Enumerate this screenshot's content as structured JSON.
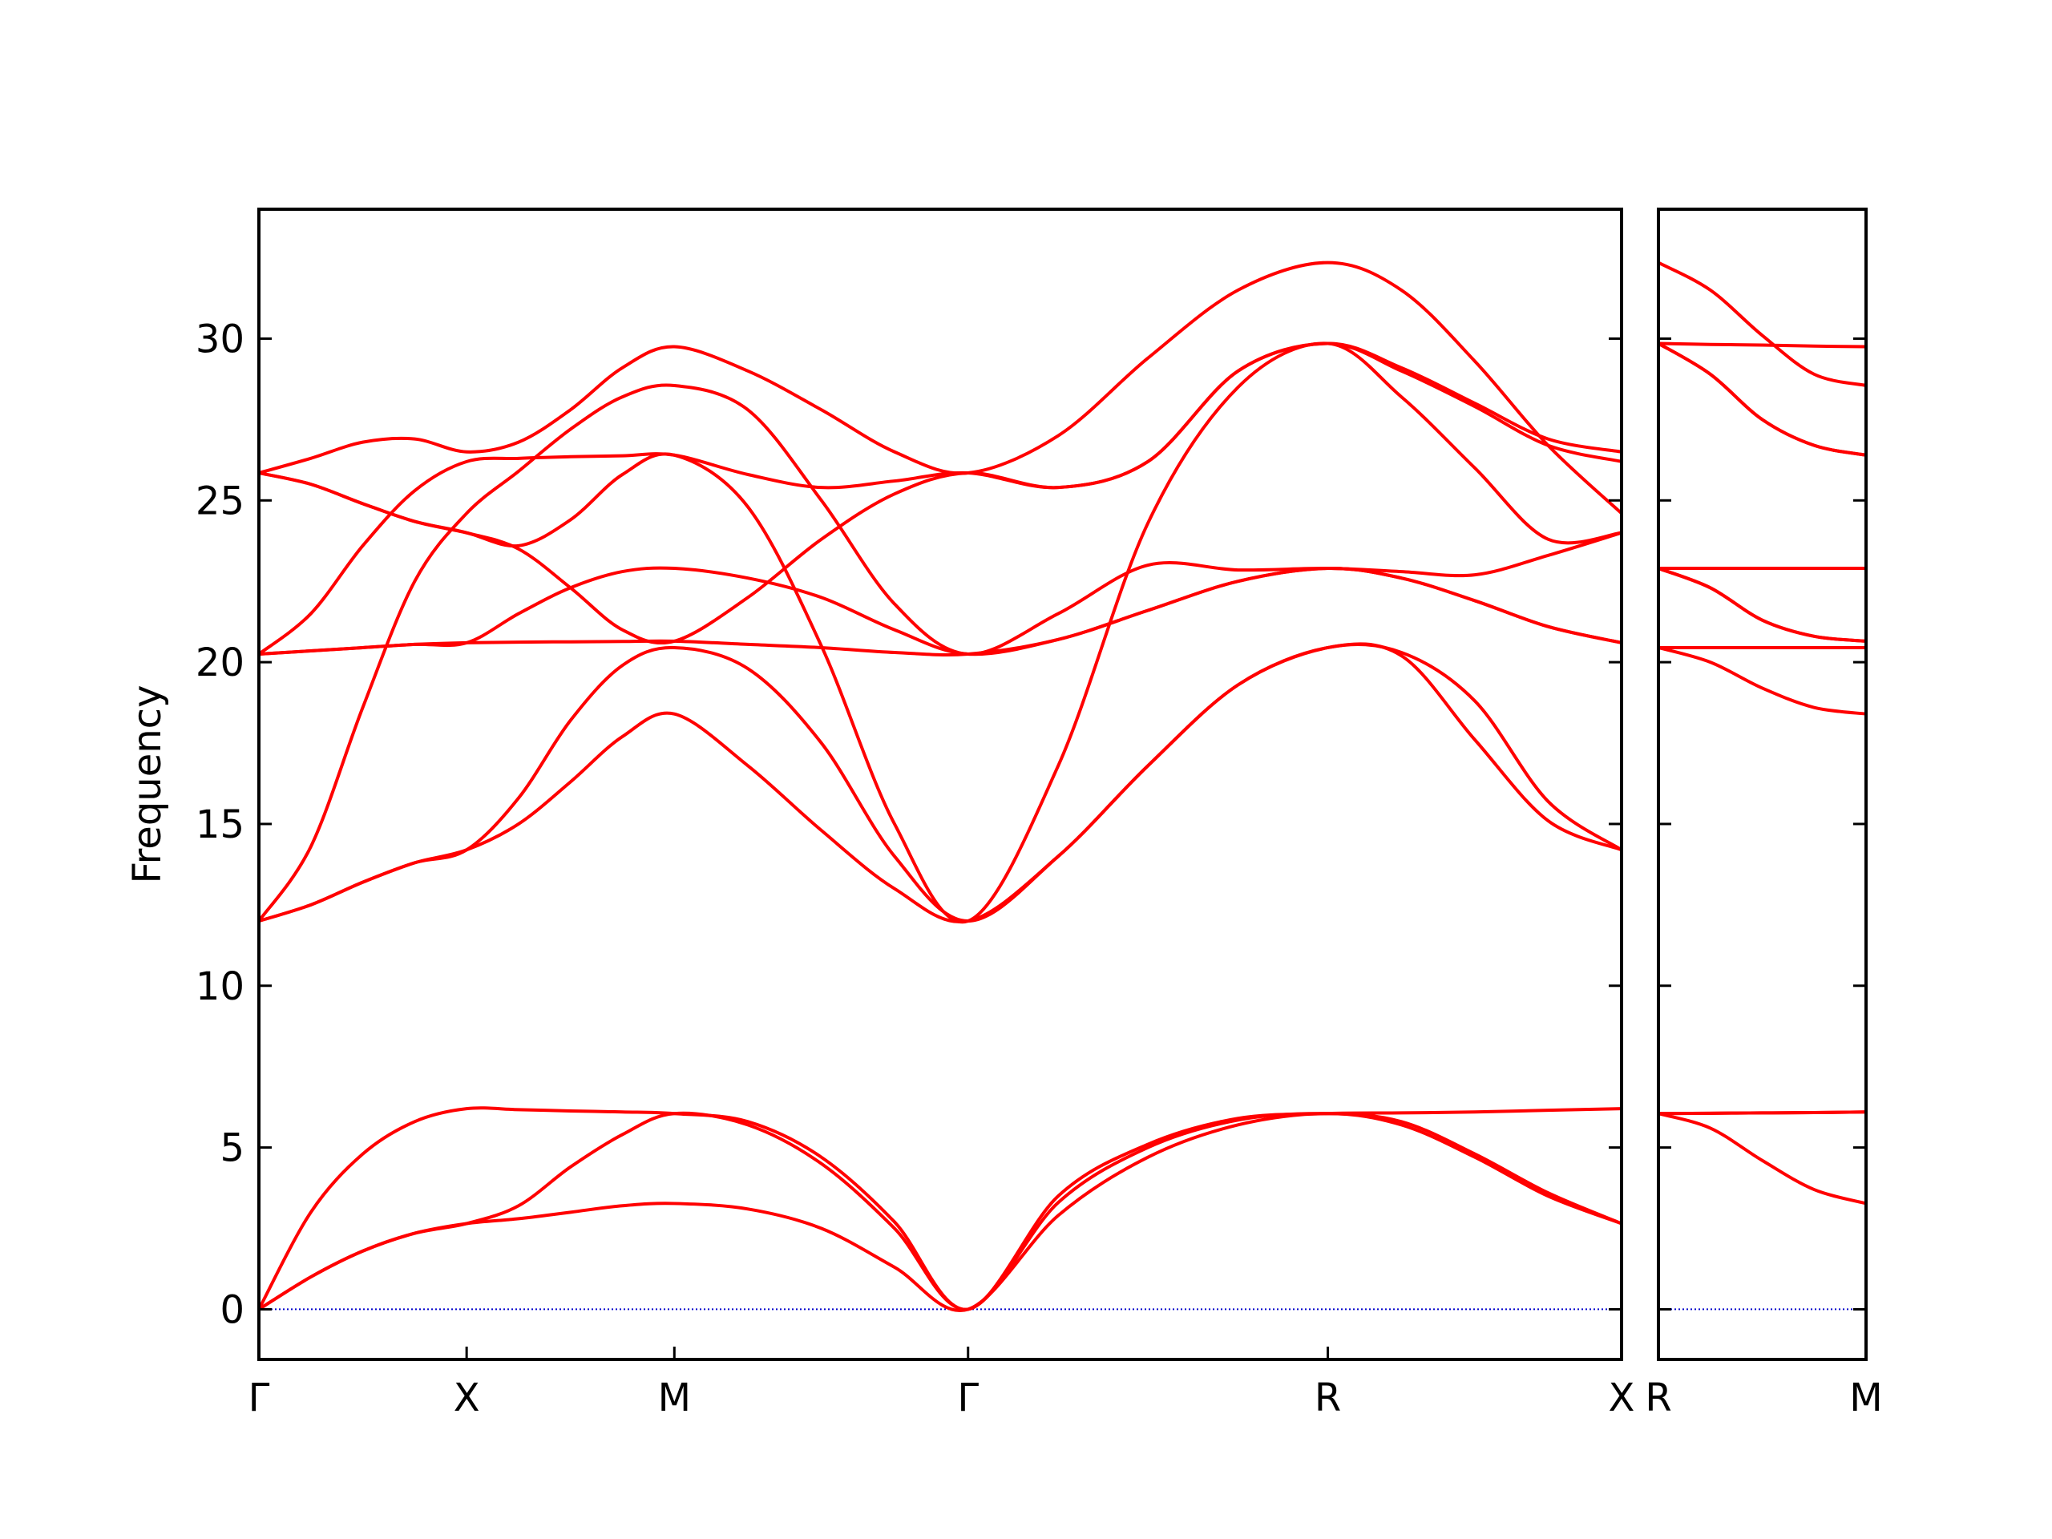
{
  "chart_data": [
    {
      "type": "line",
      "ylabel": "Frequency",
      "color": "#ff0000",
      "x": [
        0,
        0.125,
        0.25,
        0.375,
        0.5,
        0.625,
        0.75,
        0.875,
        1.0,
        1.177,
        1.354,
        1.53,
        1.707,
        1.924,
        2.14,
        2.357,
        2.573,
        2.75,
        2.927,
        3.103,
        3.28
      ],
      "xlim": [
        0,
        3.28
      ],
      "xticks": [
        {
          "value": 0,
          "label": "Γ"
        },
        {
          "value": 0.5,
          "label": "X"
        },
        {
          "value": 1.0,
          "label": "M"
        },
        {
          "value": 1.707,
          "label": "Γ"
        },
        {
          "value": 2.573,
          "label": "R"
        },
        {
          "value": 3.28,
          "label": "X"
        }
      ],
      "ylim": [
        -1.55,
        34.0
      ],
      "yticks": [
        0,
        5,
        10,
        15,
        20,
        25,
        30
      ],
      "show_ytick_labels": true,
      "hline": {
        "y": 0,
        "color": "#0000cc",
        "style": "dotted"
      },
      "series": [
        {
          "values": [
            0,
            1.0,
            1.8,
            2.35,
            2.65,
            2.8,
            3.0,
            3.2,
            3.27,
            3.1,
            2.5,
            1.3,
            0,
            2.9,
            4.7,
            5.7,
            6.05,
            5.7,
            4.7,
            3.5,
            2.65
          ]
        },
        {
          "values": [
            0,
            1.0,
            1.8,
            2.35,
            2.65,
            3.2,
            4.4,
            5.4,
            6.05,
            5.7,
            4.5,
            2.5,
            0,
            3.3,
            5.0,
            5.85,
            6.05,
            5.8,
            4.8,
            3.6,
            2.65
          ]
        },
        {
          "values": [
            0,
            3.0,
            4.8,
            5.8,
            6.2,
            6.17,
            6.13,
            6.1,
            6.05,
            5.8,
            4.7,
            2.7,
            0,
            3.5,
            5.1,
            5.9,
            6.05,
            6.07,
            6.1,
            6.15,
            6.2
          ]
        },
        {
          "values": [
            12,
            12.5,
            13.2,
            13.8,
            14.2,
            15.0,
            16.3,
            17.7,
            18.4,
            16.8,
            14.8,
            13.0,
            12,
            14.0,
            16.8,
            19.3,
            20.45,
            20.2,
            17.6,
            15.1,
            14.2
          ]
        },
        {
          "values": [
            12,
            12.5,
            13.2,
            13.8,
            14.2,
            15.8,
            18.2,
            19.9,
            20.45,
            19.8,
            17.5,
            14.0,
            12,
            14.0,
            16.8,
            19.3,
            20.45,
            20.3,
            18.8,
            15.7,
            14.2
          ]
        },
        {
          "values": [
            12,
            14.3,
            18.6,
            22.5,
            24.6,
            25.9,
            27.2,
            28.2,
            28.55,
            27.8,
            25.0,
            21.8,
            20.25,
            21.5,
            23.0,
            22.85,
            22.9,
            22.8,
            22.7,
            23.3,
            24.0
          ]
        },
        {
          "values": [
            20.25,
            20.35,
            20.45,
            20.55,
            20.6,
            20.62,
            20.63,
            20.64,
            20.65,
            20.55,
            20.45,
            20.3,
            20.25,
            20.7,
            21.6,
            22.5,
            22.9,
            22.6,
            21.9,
            21.1,
            20.6
          ]
        },
        {
          "values": [
            20.25,
            20.35,
            20.45,
            20.55,
            20.6,
            21.5,
            22.3,
            22.8,
            22.9,
            22.6,
            22.0,
            21.0,
            20.25,
            20.7,
            21.6,
            22.5,
            22.9,
            22.6,
            21.9,
            21.1,
            20.6
          ]
        },
        {
          "values": [
            20.25,
            21.5,
            23.6,
            25.3,
            26.2,
            26.3,
            26.35,
            26.38,
            26.4,
            25.8,
            25.4,
            25.6,
            25.85,
            25.4,
            26.2,
            29.0,
            29.85,
            29.0,
            27.9,
            26.7,
            26.2
          ]
        },
        {
          "values": [
            25.85,
            25.5,
            24.9,
            24.35,
            24.0,
            23.5,
            22.3,
            21.0,
            20.65,
            22.0,
            23.8,
            25.2,
            25.85,
            25.4,
            26.2,
            29.0,
            29.85,
            29.1,
            28.0,
            26.9,
            26.5
          ]
        },
        {
          "values": [
            25.85,
            25.5,
            24.9,
            24.35,
            24.0,
            23.6,
            24.4,
            25.8,
            26.4,
            24.8,
            20.5,
            15.0,
            12,
            16.8,
            24.3,
            28.5,
            29.85,
            28.2,
            26.0,
            23.8,
            24.0
          ]
        },
        {
          "values": [
            25.85,
            26.3,
            26.8,
            26.9,
            26.5,
            26.8,
            27.8,
            29.1,
            29.75,
            29.0,
            27.8,
            26.5,
            25.85,
            27.0,
            29.4,
            31.5,
            32.35,
            31.5,
            29.3,
            26.7,
            24.6
          ]
        }
      ]
    },
    {
      "type": "line",
      "color": "#ff0000",
      "x": [
        0,
        0.125,
        0.25,
        0.375,
        0.5
      ],
      "xlim": [
        0,
        0.5
      ],
      "xticks": [
        {
          "value": 0,
          "label": "R"
        },
        {
          "value": 0.5,
          "label": "M"
        }
      ],
      "ylim": [
        -1.55,
        34.0
      ],
      "yticks": [
        0,
        5,
        10,
        15,
        20,
        25,
        30
      ],
      "show_ytick_labels": false,
      "hline": {
        "y": 0,
        "color": "#0000cc",
        "style": "dotted"
      },
      "series": [
        {
          "values": [
            6.05,
            5.6,
            4.6,
            3.7,
            3.27
          ]
        },
        {
          "values": [
            6.05,
            6.06,
            6.07,
            6.08,
            6.1
          ]
        },
        {
          "values": [
            6.05,
            6.06,
            6.07,
            6.08,
            6.1
          ]
        },
        {
          "values": [
            20.45,
            20.0,
            19.2,
            18.6,
            18.4
          ]
        },
        {
          "values": [
            20.45,
            20.45,
            20.45,
            20.45,
            20.45
          ]
        },
        {
          "values": [
            22.9,
            22.9,
            22.9,
            22.9,
            22.9
          ]
        },
        {
          "values": [
            22.9,
            22.3,
            21.3,
            20.8,
            20.65
          ]
        },
        {
          "values": [
            22.9,
            22.3,
            21.3,
            20.8,
            20.65
          ]
        },
        {
          "values": [
            29.85,
            29.82,
            29.8,
            29.77,
            29.75
          ]
        },
        {
          "values": [
            29.85,
            28.9,
            27.5,
            26.7,
            26.4
          ]
        },
        {
          "values": [
            29.85,
            28.9,
            27.5,
            26.7,
            26.4
          ]
        },
        {
          "values": [
            32.35,
            31.5,
            30.1,
            28.9,
            28.55
          ]
        }
      ]
    }
  ]
}
